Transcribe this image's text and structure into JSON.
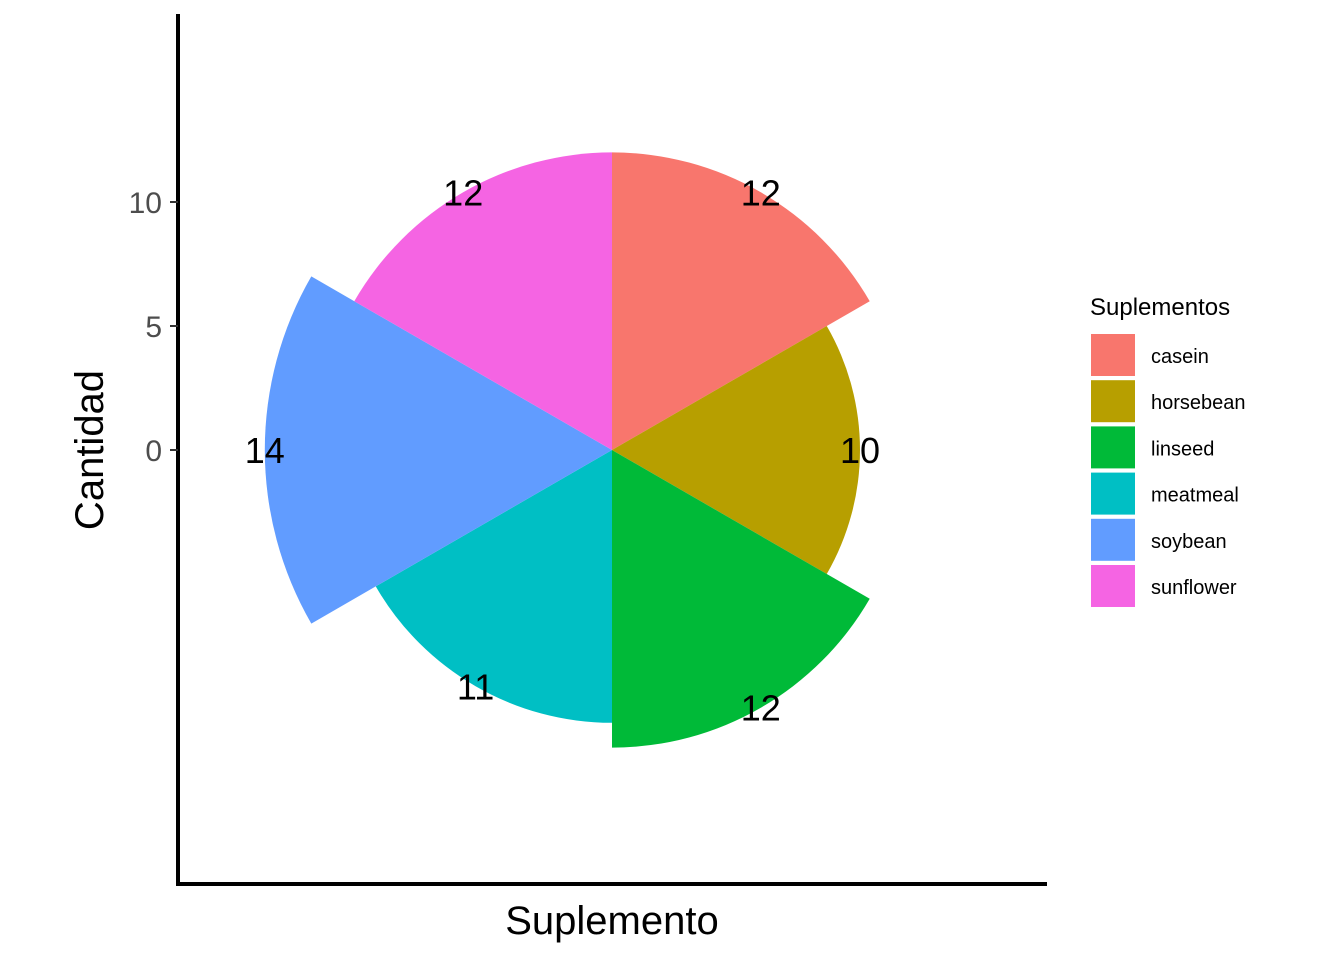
{
  "chart_data": {
    "type": "pie",
    "subtype": "coxcomb (polar bar)",
    "categories": [
      "casein",
      "horsebean",
      "linseed",
      "meatmeal",
      "soybean",
      "sunflower"
    ],
    "values": [
      12,
      10,
      12,
      11,
      14,
      12
    ],
    "colors": [
      "#F8766D",
      "#B79F00",
      "#00BA38",
      "#00BFC4",
      "#619CFF",
      "#F564E3"
    ],
    "xlabel": "Suplemento",
    "ylabel": "Cantidad",
    "yticks": [
      0,
      5,
      10
    ],
    "ytick_labels": [
      "0",
      "5",
      "10"
    ],
    "legend": {
      "title": "Suplementos",
      "position": "right",
      "entries": [
        "casein",
        "horsebean",
        "linseed",
        "meatmeal",
        "soybean",
        "sunflower"
      ]
    },
    "grid": false
  }
}
